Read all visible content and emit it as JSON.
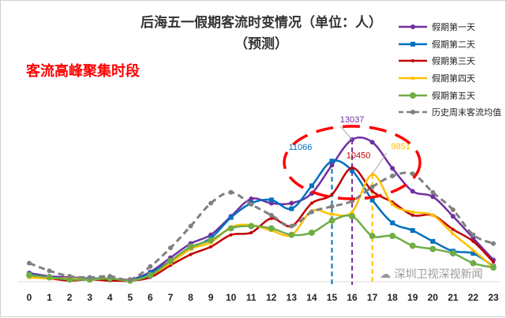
{
  "chart_data": {
    "type": "line",
    "title": "后海五一假期客流时变情况（单位：人）",
    "subtitle": "（预测）",
    "annotation_text": "客流高峰聚集时段",
    "x": [
      0,
      1,
      2,
      3,
      4,
      5,
      6,
      7,
      8,
      9,
      10,
      11,
      12,
      13,
      14,
      15,
      16,
      17,
      18,
      19,
      20,
      21,
      22,
      23
    ],
    "ylim": [
      0,
      15000
    ],
    "grid": false,
    "legend_position": "top-right",
    "series": [
      {
        "name": "假期第一天",
        "color": "#7030a0",
        "marker": "circle",
        "dash": false,
        "values": [
          800,
          500,
          400,
          300,
          300,
          200,
          900,
          2200,
          3500,
          4300,
          6000,
          7600,
          7200,
          7200,
          8100,
          10700,
          13037,
          12800,
          10400,
          8300,
          7800,
          6000,
          4000,
          2000
        ]
      },
      {
        "name": "假期第二天",
        "color": "#0070c0",
        "marker": "square",
        "dash": false,
        "values": [
          700,
          400,
          300,
          300,
          200,
          100,
          800,
          1900,
          3100,
          4000,
          5900,
          7200,
          7500,
          6700,
          8800,
          11066,
          10200,
          7500,
          5400,
          4700,
          3700,
          2800,
          2600,
          1400
        ]
      },
      {
        "name": "假期第三天",
        "color": "#c00000",
        "marker": "cross",
        "dash": false,
        "values": [
          400,
          300,
          100,
          200,
          100,
          100,
          400,
          1500,
          2500,
          3200,
          4300,
          4500,
          5800,
          5100,
          7200,
          8000,
          10450,
          8300,
          7300,
          6100,
          6100,
          4800,
          3700,
          1800
        ]
      },
      {
        "name": "假期第四天",
        "color": "#ffc000",
        "marker": "triangle",
        "dash": false,
        "values": [
          400,
          300,
          300,
          200,
          300,
          100,
          600,
          1700,
          3000,
          3600,
          5000,
          5200,
          4700,
          4300,
          6500,
          6200,
          6400,
          9851,
          7100,
          6400,
          6100,
          4400,
          2900,
          1300
        ]
      },
      {
        "name": "假期第五天",
        "color": "#70ad47",
        "marker": "circle",
        "dash": false,
        "values": [
          600,
          400,
          200,
          200,
          300,
          100,
          600,
          1900,
          3200,
          3800,
          4900,
          5100,
          4900,
          4300,
          4500,
          5600,
          6000,
          4200,
          4200,
          3300,
          3000,
          2600,
          1700,
          1300
        ]
      },
      {
        "name": "历史周末客流均值",
        "color": "#808080",
        "marker": "circle",
        "dash": true,
        "values": [
          1700,
          1000,
          500,
          400,
          500,
          200,
          1400,
          3100,
          5100,
          7200,
          8200,
          7100,
          6100,
          5100,
          6400,
          6900,
          7400,
          8700,
          9700,
          9900,
          8200,
          6600,
          4300,
          3500
        ]
      }
    ],
    "data_labels": [
      {
        "series": 0,
        "x": 16,
        "text": "13037",
        "color": "#7030a0"
      },
      {
        "series": 1,
        "x": 15,
        "text": "11066",
        "color": "#0070c0"
      },
      {
        "series": 2,
        "x": 16,
        "text": "10450",
        "color": "#c00000"
      },
      {
        "series": 3,
        "x": 17,
        "text": "9851",
        "color": "#ffc000"
      }
    ],
    "highlight_color": "#ff0000"
  },
  "watermark": "深圳卫视深视新闻"
}
